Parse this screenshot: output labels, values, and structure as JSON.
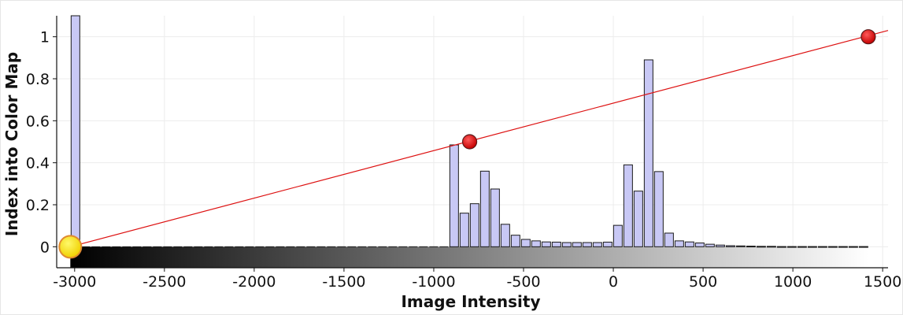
{
  "chart_data": {
    "type": "bar",
    "title": "",
    "xlabel": "Image Intensity",
    "ylabel": "Index into Color Map",
    "xlim": [
      -3100,
      1530
    ],
    "ylim": [
      -0.1,
      1.1
    ],
    "x_ticks": [
      -3000,
      -2500,
      -2000,
      -1500,
      -1000,
      -500,
      0,
      500,
      1000,
      1500
    ],
    "y_ticks": [
      0,
      0.2,
      0.4,
      0.6,
      0.8,
      1
    ],
    "x_tick_labels": [
      "-3000",
      "-2500",
      "-2000",
      "-1500",
      "-1000",
      "-500",
      "0",
      "500",
      "1000",
      "1500"
    ],
    "y_tick_labels": [
      "0",
      "0.2",
      "0.4",
      "0.6",
      "0.8",
      "1"
    ],
    "grid": true,
    "histogram": {
      "bin_width": 57,
      "bin_start": -3024,
      "values": [
        1.2,
        0,
        0,
        0,
        0,
        0,
        0,
        0,
        0,
        0,
        0,
        0,
        0,
        0,
        0,
        0,
        0,
        0,
        0,
        0,
        0,
        0,
        0,
        0,
        0,
        0,
        0,
        0,
        0,
        0,
        0,
        0,
        0,
        0,
        0,
        0,
        0,
        0.485,
        0.16,
        0.205,
        0.36,
        0.275,
        0.107,
        0.055,
        0.035,
        0.028,
        0.023,
        0.022,
        0.02,
        0.02,
        0.02,
        0.02,
        0.022,
        0.102,
        0.39,
        0.265,
        0.89,
        0.358,
        0.065,
        0.028,
        0.023,
        0.018,
        0.012,
        0.008,
        0.005,
        0.004,
        0.003,
        0.002,
        0.002,
        0.001,
        0.001,
        0.001,
        0.001,
        0.001,
        0.001,
        0.001,
        0.001,
        0.001
      ]
    },
    "transfer_function": {
      "points": [
        {
          "x": -3024,
          "y": 0,
          "highlighted": true
        },
        {
          "x": -800,
          "y": 0.5,
          "highlighted": false
        },
        {
          "x": 1420,
          "y": 1,
          "highlighted": false
        }
      ],
      "line": [
        [
          -3024,
          0
        ],
        [
          1530,
          1.03
        ]
      ]
    },
    "colors": {
      "bar_fill": "#c8c8f5",
      "bar_stroke": "#1a1a1a",
      "line": "#dd1111",
      "point": "#ee1111",
      "point_highlight": "#ffee22",
      "grid": "#ececec",
      "gradient_start": "#000000",
      "gradient_end": "#ffffff"
    }
  }
}
